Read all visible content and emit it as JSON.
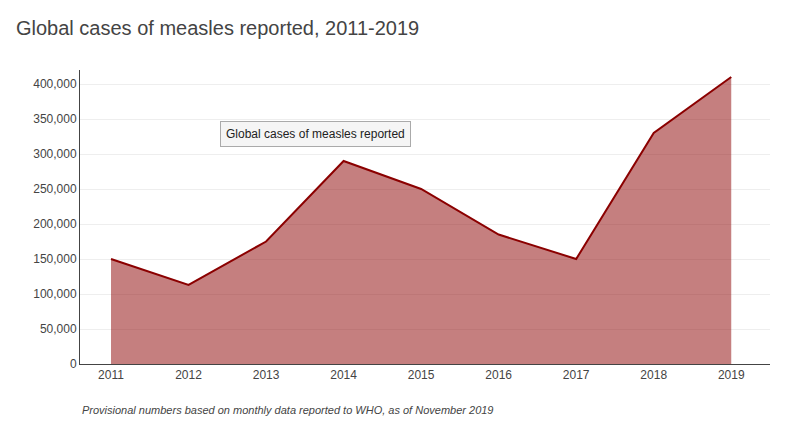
{
  "chart_data": {
    "type": "area",
    "title": "Global cases of measles reported, 2011-2019",
    "x": [
      2011,
      2012,
      2013,
      2014,
      2015,
      2016,
      2017,
      2018,
      2019
    ],
    "values": [
      150000,
      113000,
      175000,
      290000,
      250000,
      185000,
      150000,
      330000,
      410000
    ],
    "color": "#8B0000",
    "xlim": [
      2010.6,
      2019.5
    ],
    "xticks": [
      2011,
      2012,
      2013,
      2014,
      2015,
      2016,
      2017,
      2018,
      2019
    ],
    "ylim": [
      0,
      420000
    ],
    "yticks": [
      0,
      {
        "value": 50000,
        "label": "50,000"
      },
      {
        "value": 100000,
        "label": "100,000"
      },
      {
        "value": 150000,
        "label": "150,000"
      },
      {
        "value": 200000,
        "label": "200,000"
      },
      {
        "value": 250000,
        "label": "250,000"
      },
      {
        "value": 300000,
        "label": "300,000"
      },
      {
        "value": 350000,
        "label": "350,000"
      },
      {
        "value": 400000,
        "label": "400,000"
      }
    ],
    "grid": "y",
    "annotations": [
      {
        "text": "Global cases of measles reported",
        "x": 2012.4,
        "y": 310000
      }
    ],
    "footnote": "Provisional numbers based on monthly data reported to WHO, as of November 2019"
  }
}
